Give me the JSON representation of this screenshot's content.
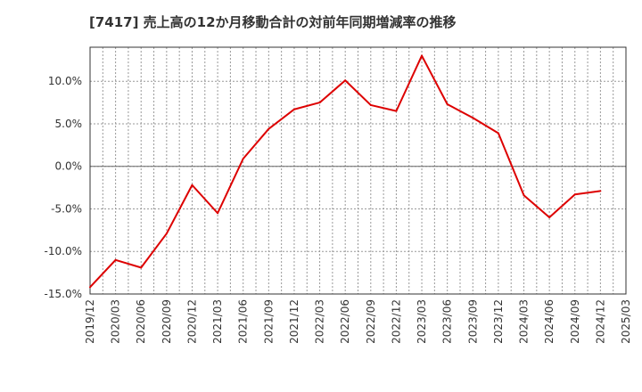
{
  "chart_data": {
    "type": "line",
    "title": "[7417]  売上高の12か月移動合計の対前年同期増減率の推移",
    "xlabel": "",
    "ylabel": "",
    "ylim": [
      -15,
      14
    ],
    "y_ticks": [
      {
        "value": 10,
        "label": "10.0%"
      },
      {
        "value": 5,
        "label": "5.0%"
      },
      {
        "value": 0,
        "label": "0.0%"
      },
      {
        "value": -5,
        "label": "-5.0%"
      },
      {
        "value": -10,
        "label": "-10.0%"
      },
      {
        "value": -15,
        "label": "-15.0%"
      }
    ],
    "x_ticks": [
      "2019/12",
      "2020/03",
      "2020/06",
      "2020/09",
      "2020/12",
      "2021/03",
      "2021/06",
      "2021/09",
      "2021/12",
      "2022/03",
      "2022/06",
      "2022/09",
      "2022/12",
      "2023/03",
      "2023/06",
      "2023/09",
      "2023/12",
      "2024/03",
      "2024/06",
      "2024/09",
      "2024/12",
      "2025/03"
    ],
    "series": [
      {
        "color": "#dd0000",
        "x": [
          "2019/12",
          "2020/03",
          "2020/06",
          "2020/09",
          "2020/12",
          "2021/03",
          "2021/06",
          "2021/09",
          "2021/12",
          "2022/03",
          "2022/06",
          "2022/09",
          "2022/12",
          "2023/03",
          "2023/06",
          "2023/09",
          "2023/12",
          "2024/03",
          "2024/06",
          "2024/09",
          "2024/12"
        ],
        "values": [
          -14.2,
          -11.0,
          -11.9,
          -7.9,
          -2.2,
          -5.5,
          0.9,
          4.4,
          6.7,
          7.5,
          10.1,
          7.2,
          6.5,
          13.0,
          7.3,
          5.7,
          3.9,
          -3.4,
          -6.0,
          -3.3,
          -2.9
        ]
      }
    ],
    "grid": true,
    "legend": "none"
  }
}
